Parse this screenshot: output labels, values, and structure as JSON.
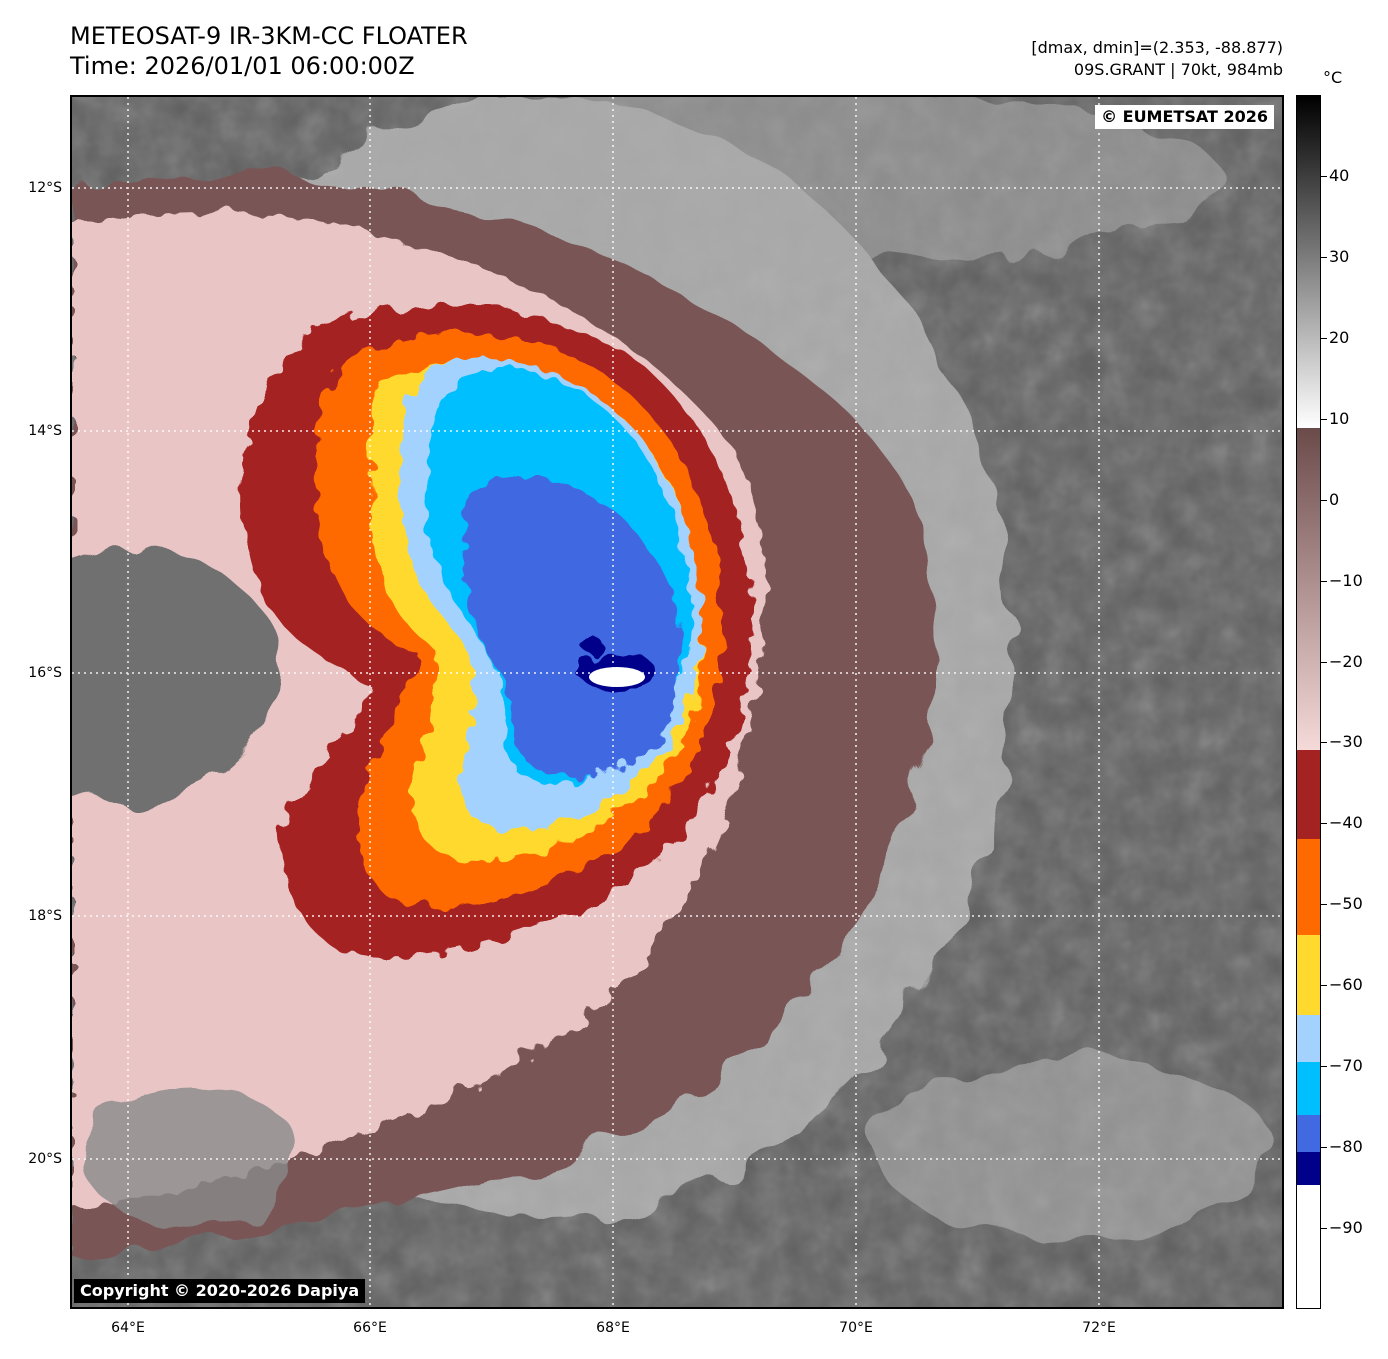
{
  "header": {
    "title_line1": "METEOSAT-9 IR-3KM-CC FLOATER",
    "title_line2": "Time: 2026/01/01 06:00:00Z",
    "info_line1": "[dmax, dmin]=(2.353, -88.877)",
    "info_line2": "09S.GRANT | 70kt, 984mb"
  },
  "map": {
    "eumetsat_badge": "© EUMETSAT 2026",
    "copyright_badge": "Copyright © 2020-2026 Dapiya",
    "latitude_labels": [
      "12°S",
      "14°S",
      "16°S",
      "18°S",
      "20°S"
    ],
    "longitude_labels": [
      "64°E",
      "66°E",
      "68°E",
      "70°E",
      "72°E"
    ]
  },
  "colorbar": {
    "unit": "°C",
    "tick_labels": [
      "40",
      "30",
      "20",
      "10",
      "0",
      "−10",
      "−20",
      "−30",
      "−40",
      "−50",
      "−60",
      "−70",
      "−80",
      "−90"
    ],
    "tick_values": [
      40,
      30,
      20,
      10,
      0,
      -10,
      -20,
      -30,
      -40,
      -50,
      -60,
      -70,
      -80,
      -90
    ],
    "range": [
      -100,
      50
    ],
    "colors": {
      "warm_black": "#000000",
      "gray_white": "#ffffff",
      "brown": "#6b4a4a",
      "pink": "#f3d6d6",
      "dark_red": "#a52222",
      "orange": "#ff6a00",
      "yellow": "#ffd92e",
      "light_blue": "#a4d2ff",
      "cyan": "#00bfff",
      "royal_blue": "#4169e1",
      "navy": "#00008b",
      "white": "#ffffff"
    }
  }
}
